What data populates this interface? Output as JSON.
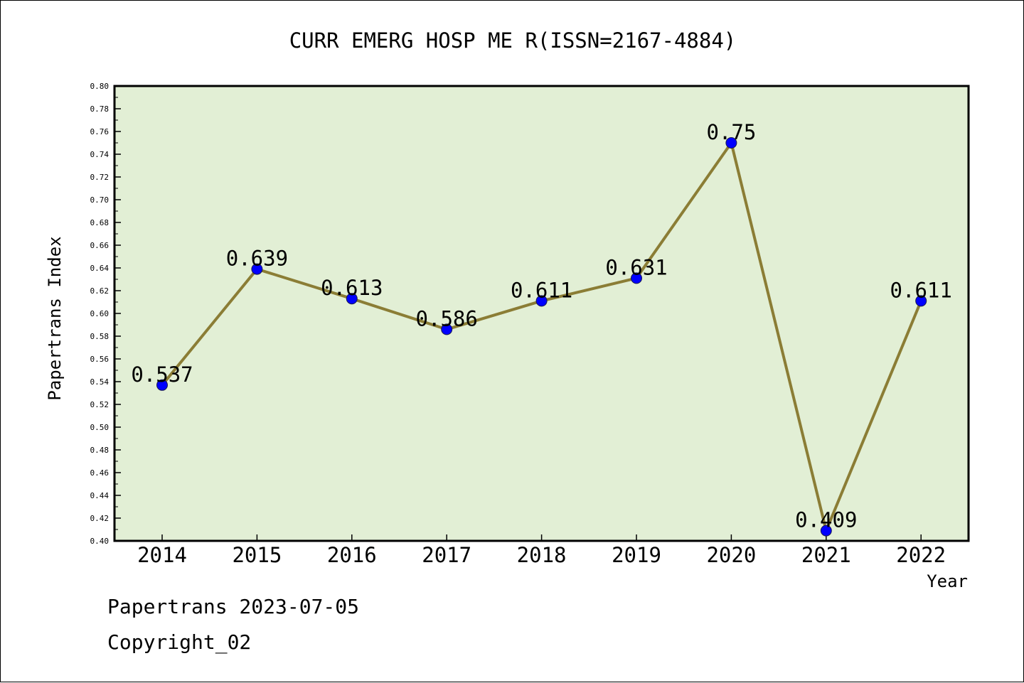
{
  "chart_data": {
    "type": "line",
    "title": "CURR EMERG HOSP ME R(ISSN=2167-4884)",
    "xlabel": "Year",
    "ylabel": "Papertrans Index",
    "categories": [
      "2014",
      "2015",
      "2016",
      "2017",
      "2018",
      "2019",
      "2020",
      "2021",
      "2022"
    ],
    "series": [
      {
        "values": [
          0.537,
          0.639,
          0.613,
          0.586,
          0.611,
          0.631,
          0.75,
          0.409,
          0.611
        ],
        "data_labels": [
          "0.537",
          "0.639",
          "0.613",
          "0.586",
          "0.611",
          "0.631",
          "0.75",
          "0.409",
          "0.611"
        ]
      }
    ],
    "ylim": [
      0.4,
      0.8
    ],
    "yticks": [
      "0.40",
      "0.42",
      "0.44",
      "0.46",
      "0.48",
      "0.50",
      "0.52",
      "0.54",
      "0.56",
      "0.58",
      "0.60",
      "0.62",
      "0.64",
      "0.66",
      "0.68",
      "0.70",
      "0.72",
      "0.74",
      "0.76",
      "0.78",
      "0.80"
    ],
    "grid": false,
    "legend": "none",
    "colors": {
      "plot_background": "#e2efd5",
      "line": "#8b7d35",
      "marker": "#0000ff"
    }
  },
  "footer": {
    "source": "Papertrans 2023-07-05",
    "copyright": "Copyright_02"
  }
}
